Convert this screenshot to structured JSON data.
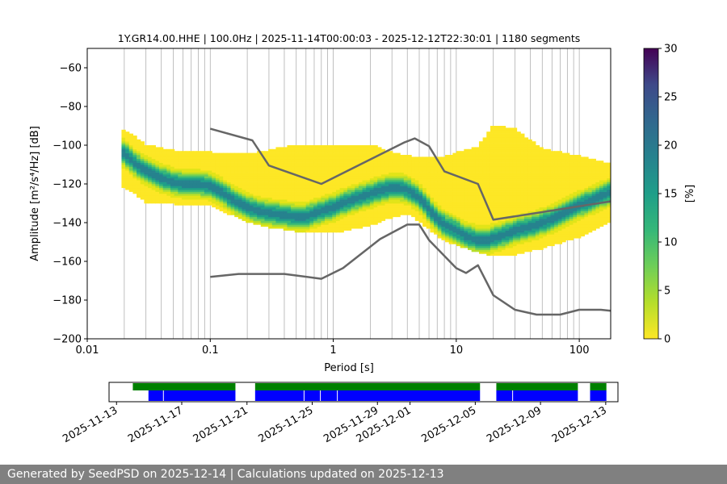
{
  "footer": {
    "text": "Generated by SeedPSD on 2025-12-14 | Calculations updated on 2025-12-13"
  },
  "chart_data": [
    {
      "type": "heatmap",
      "title": "1Y.GR14.00.HHE | 100.0Hz | 2025-11-14T00:00:03 - 2025-12-12T22:30:01 | 1180 segments",
      "xlabel": "Period [s]",
      "ylabel": "Amplitude [m²/s⁴/Hz] [dB]",
      "xscale": "log",
      "xlim": [
        0.01,
        180
      ],
      "ylim": [
        -200,
        -50
      ],
      "x_ticks": [
        0.01,
        0.1,
        1,
        10,
        100
      ],
      "x_tick_labels": [
        "0.01",
        "0.1",
        "1",
        "10",
        "100"
      ],
      "y_ticks": [
        -200,
        -180,
        -160,
        -140,
        -120,
        -100,
        -80,
        -60
      ],
      "y_tick_labels": [
        "−200",
        "−180",
        "−160",
        "−140",
        "−120",
        "−100",
        "−80",
        "−60"
      ],
      "grid": "vertical log gridlines",
      "colormap": "viridis",
      "colorbar": {
        "label": "[%]",
        "min": 0,
        "max": 30,
        "ticks": [
          0,
          5,
          10,
          15,
          20,
          25,
          30
        ]
      },
      "density_mode": [
        [
          0.02,
          -104
        ],
        [
          0.025,
          -110
        ],
        [
          0.03,
          -113
        ],
        [
          0.04,
          -117
        ],
        [
          0.05,
          -119
        ],
        [
          0.06,
          -120
        ],
        [
          0.08,
          -120
        ],
        [
          0.1,
          -121
        ],
        [
          0.13,
          -125
        ],
        [
          0.16,
          -129
        ],
        [
          0.2,
          -132
        ],
        [
          0.25,
          -134
        ],
        [
          0.3,
          -135
        ],
        [
          0.4,
          -136
        ],
        [
          0.5,
          -137
        ],
        [
          0.6,
          -137
        ],
        [
          0.7,
          -135
        ],
        [
          0.8,
          -134
        ],
        [
          1.0,
          -132
        ],
        [
          1.3,
          -129
        ],
        [
          1.6,
          -127
        ],
        [
          2.0,
          -125
        ],
        [
          2.5,
          -123
        ],
        [
          3.0,
          -122
        ],
        [
          3.5,
          -122
        ],
        [
          4.0,
          -123
        ],
        [
          5.0,
          -127
        ],
        [
          6.0,
          -133
        ],
        [
          7.0,
          -138
        ],
        [
          8.0,
          -141
        ],
        [
          10,
          -144
        ],
        [
          12,
          -147
        ],
        [
          15,
          -149
        ],
        [
          18,
          -149
        ],
        [
          20,
          -148
        ],
        [
          25,
          -146
        ],
        [
          30,
          -144
        ],
        [
          40,
          -142
        ],
        [
          50,
          -140
        ],
        [
          60,
          -138
        ],
        [
          80,
          -134
        ],
        [
          100,
          -131
        ],
        [
          130,
          -128
        ],
        [
          180,
          -124
        ]
      ],
      "density_upper": [
        [
          0.02,
          -92
        ],
        [
          0.03,
          -100
        ],
        [
          0.05,
          -103
        ],
        [
          0.1,
          -104
        ],
        [
          0.2,
          -105
        ],
        [
          0.5,
          -100
        ],
        [
          1.0,
          -100
        ],
        [
          2.0,
          -100
        ],
        [
          3.0,
          -104
        ],
        [
          5.0,
          -107
        ],
        [
          8.0,
          -106
        ],
        [
          15,
          -101
        ],
        [
          20,
          -90
        ],
        [
          30,
          -92
        ],
        [
          50,
          -102
        ],
        [
          100,
          -106
        ],
        [
          180,
          -110
        ]
      ],
      "density_lower": [
        [
          0.02,
          -122
        ],
        [
          0.03,
          -130
        ],
        [
          0.05,
          -131
        ],
        [
          0.1,
          -132
        ],
        [
          0.2,
          -140
        ],
        [
          0.3,
          -143
        ],
        [
          0.5,
          -145
        ],
        [
          1.0,
          -146
        ],
        [
          2.0,
          -142
        ],
        [
          3.0,
          -138
        ],
        [
          4.0,
          -136
        ],
        [
          5.0,
          -140
        ],
        [
          8.0,
          -150
        ],
        [
          12,
          -154
        ],
        [
          20,
          -158
        ],
        [
          30,
          -157
        ],
        [
          50,
          -154
        ],
        [
          100,
          -148
        ],
        [
          180,
          -140
        ]
      ],
      "series": [
        {
          "name": "",
          "color": "#666666",
          "x": [
            0.1,
            0.22,
            0.3,
            0.8,
            3.8,
            4.6,
            6.0,
            8.0,
            15.0,
            20.0,
            180
          ],
          "y": [
            -91.5,
            -97.5,
            -110.5,
            -120,
            -98.5,
            -96.5,
            -100.5,
            -113.5,
            -120,
            -138.5,
            -129
          ]
        },
        {
          "name": "",
          "color": "#666666",
          "x": [
            0.1,
            0.17,
            0.4,
            0.8,
            1.2,
            2.4,
            4.0,
            5.0,
            6.0,
            10.0,
            12.0,
            15.0,
            20.0,
            30.0,
            45.0,
            70.0,
            100.0,
            150.0,
            180
          ],
          "y": [
            -168,
            -166.5,
            -166.5,
            -169,
            -163.5,
            -148.5,
            -141,
            -141,
            -149,
            -163.5,
            -166,
            -162,
            -177.5,
            -185,
            -187.5,
            -187.5,
            -185,
            -185,
            -185.5
          ]
        }
      ]
    },
    {
      "type": "timeline",
      "x_ticks": [
        "2025-11-13",
        "2025-11-17",
        "2025-11-21",
        "2025-11-25",
        "2025-11-29",
        "2025-12-01",
        "2025-12-05",
        "2025-12-09",
        "2025-12-13"
      ],
      "xlim": [
        "2025-11-12T13:00",
        "2025-12-13T18:00"
      ],
      "rows": [
        {
          "color": "#008000",
          "spans": [
            [
              "2025-11-14",
              "2025-11-20T07:00"
            ],
            [
              "2025-11-21T12:00",
              "2025-12-05T07:00"
            ],
            [
              "2025-12-06T07:00",
              "2025-12-11T07:00"
            ],
            [
              "2025-12-12T01:00",
              "2025-12-13T01:00"
            ]
          ]
        },
        {
          "color": "#0000ff",
          "spans": [
            [
              "2025-11-14T23:00",
              "2025-11-20T07:00"
            ],
            [
              "2025-11-21T12:00",
              "2025-12-05T07:00"
            ],
            [
              "2025-12-06T07:00",
              "2025-12-11T07:00"
            ],
            [
              "2025-12-12T01:00",
              "2025-12-13T01:00"
            ]
          ],
          "gaps": [
            "2025-11-15T21:00",
            "2025-11-24T12:00",
            "2025-11-25T12:00",
            "2025-11-26T13:00",
            "2025-12-07T07:00"
          ]
        }
      ]
    }
  ]
}
